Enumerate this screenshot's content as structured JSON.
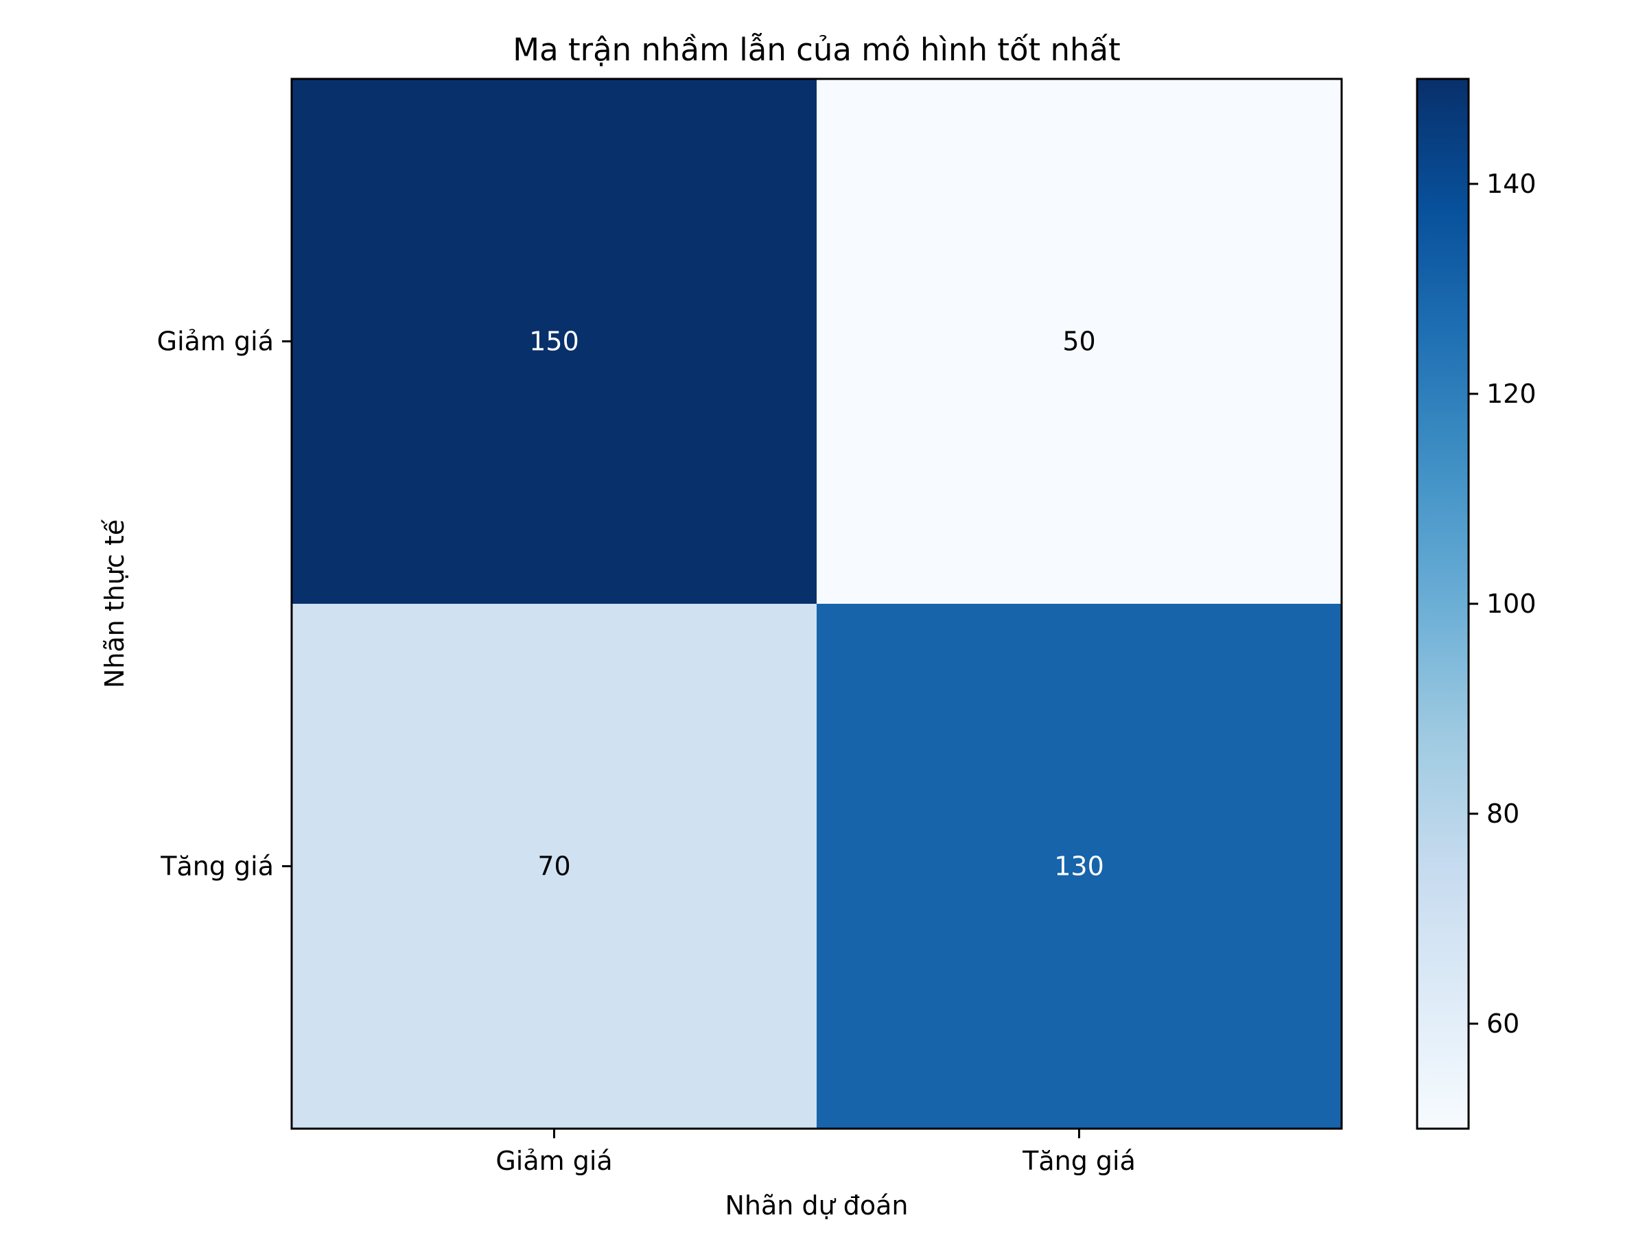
{
  "chart_data": {
    "type": "heatmap",
    "title": "Ma trận nhầm lẫn của mô hình tốt nhất",
    "xlabel": "Nhãn dự đoán",
    "ylabel": "Nhãn thực tế",
    "x_categories": [
      "Giảm giá",
      "Tăng giá"
    ],
    "y_categories": [
      "Giảm giá",
      "Tăng giá"
    ],
    "matrix": [
      [
        150,
        50
      ],
      [
        70,
        130
      ]
    ],
    "colormap": "Blues",
    "colorbar": {
      "vmin": 50,
      "vmax": 150,
      "ticks": [
        60,
        80,
        100,
        120,
        140
      ],
      "tick_labels": [
        "60",
        "80",
        "100",
        "120",
        "140"
      ]
    },
    "grid": false
  }
}
